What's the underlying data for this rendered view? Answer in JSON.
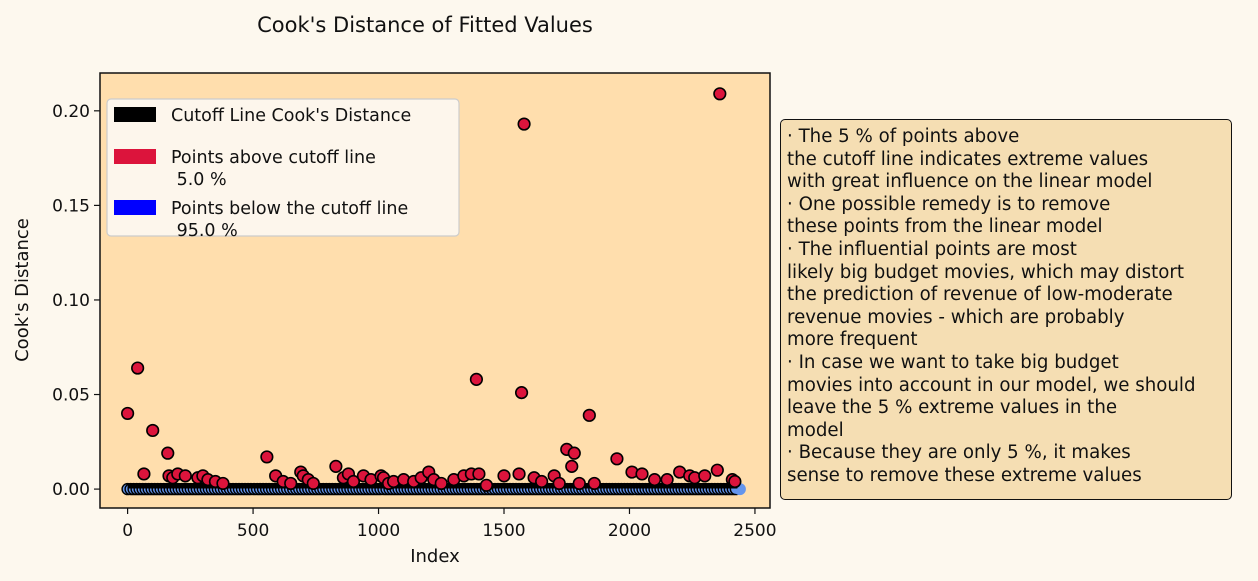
{
  "chart_data": {
    "type": "scatter",
    "title": "Cook's Distance of Fitted Values",
    "xlabel": "Index",
    "ylabel": "Cook's Distance",
    "xlim": [
      -110,
      2560
    ],
    "ylim": [
      -0.01,
      0.22
    ],
    "xticks": [
      0,
      500,
      1000,
      1500,
      2000,
      2500
    ],
    "xtick_labels": [
      "0",
      "500",
      "1000",
      "1500",
      "2000",
      "2500"
    ],
    "yticks": [
      0.0,
      0.05,
      0.1,
      0.15,
      0.2
    ],
    "ytick_labels": [
      "0.00",
      "0.05",
      "0.10",
      "0.15",
      "0.20"
    ],
    "n_points": 2430,
    "cutoff_value": 0.0016,
    "legend_position": "upper-left",
    "legend": [
      {
        "label": "Cutoff Line Cook's Distance",
        "color": "#000000"
      },
      {
        "label": "Points above cutoff line\n 5.0 %",
        "color": "#dc143c"
      },
      {
        "label": "Points below the cutoff line\n 95.0 %",
        "color": "#0000ff"
      }
    ],
    "colors": {
      "above": "#dc143c",
      "below": "#6495ed",
      "edge": "#000000",
      "plot_bg": "#ffdead",
      "cutoff": "#000000"
    },
    "series": [
      {
        "name": "Points above cutoff line",
        "x": [
          0,
          40,
          65,
          100,
          160,
          165,
          180,
          200,
          230,
          280,
          300,
          320,
          350,
          380,
          555,
          590,
          620,
          650,
          690,
          700,
          720,
          740,
          830,
          860,
          880,
          900,
          940,
          970,
          1010,
          1020,
          1040,
          1060,
          1100,
          1140,
          1170,
          1200,
          1220,
          1250,
          1300,
          1340,
          1370,
          1390,
          1400,
          1430,
          1500,
          1560,
          1570,
          1580,
          1620,
          1650,
          1700,
          1720,
          1750,
          1770,
          1780,
          1800,
          1840,
          1860,
          1950,
          2010,
          2050,
          2100,
          2150,
          2200,
          2240,
          2260,
          2300,
          2350,
          2360,
          2410,
          2420
        ],
        "y": [
          0.04,
          0.064,
          0.008,
          0.031,
          0.019,
          0.007,
          0.006,
          0.008,
          0.007,
          0.006,
          0.007,
          0.005,
          0.004,
          0.003,
          0.017,
          0.007,
          0.004,
          0.003,
          0.009,
          0.007,
          0.005,
          0.003,
          0.012,
          0.006,
          0.008,
          0.004,
          0.007,
          0.005,
          0.007,
          0.006,
          0.003,
          0.004,
          0.005,
          0.004,
          0.006,
          0.009,
          0.005,
          0.003,
          0.005,
          0.007,
          0.008,
          0.058,
          0.008,
          0.002,
          0.007,
          0.008,
          0.051,
          0.193,
          0.006,
          0.004,
          0.007,
          0.003,
          0.021,
          0.012,
          0.019,
          0.003,
          0.039,
          0.003,
          0.016,
          0.009,
          0.008,
          0.005,
          0.005,
          0.009,
          0.007,
          0.006,
          0.007,
          0.01,
          0.209,
          0.005,
          0.004
        ]
      }
    ]
  },
  "notes": {
    "lines": [
      "· The 5 % of points above",
      "the cutoff line indicates extreme values",
      "with great influence on the linear model",
      "· One possible remedy is to remove",
      "these points from the linear model",
      "· The influential points are most",
      "likely big budget movies, which may distort",
      "the prediction of revenue of low-moderate",
      "revenue movies - which are probably",
      "more frequent",
      "· In case we want to take big budget",
      "movies into account in our model, we should",
      "leave the 5 % extreme values in the",
      "model",
      "· Because they are only 5 %, it makes",
      "sense to remove these extreme values"
    ]
  }
}
